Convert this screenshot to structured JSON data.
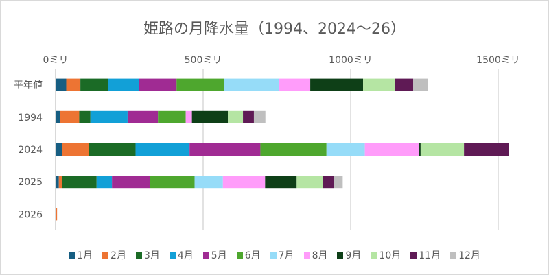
{
  "chart_data": {
    "type": "bar",
    "orientation": "horizontal",
    "stacked": true,
    "title": "姫路の月降水量（1994、2024～26）",
    "categories": [
      "平年値",
      "1994",
      "2024",
      "2025",
      "2026"
    ],
    "x_ticks": [
      "0ミリ",
      "500ミリ",
      "1000ミリ",
      "1500ミリ"
    ],
    "x_tick_values": [
      0,
      500,
      1000,
      1500
    ],
    "xlim": [
      0,
      1500
    ],
    "grid": true,
    "legend_position": "bottom",
    "series": [
      {
        "name": "1月",
        "color": "#175E82",
        "values": [
          36,
          15,
          23,
          11,
          0
        ]
      },
      {
        "name": "2月",
        "color": "#ED7433",
        "values": [
          48,
          65,
          90,
          12,
          5
        ]
      },
      {
        "name": "3月",
        "color": "#1B6B26",
        "values": [
          94,
          38,
          158,
          116,
          0
        ]
      },
      {
        "name": "4月",
        "color": "#12A0D7",
        "values": [
          104,
          126,
          183,
          52,
          0
        ]
      },
      {
        "name": "5月",
        "color": "#A02B93",
        "values": [
          128,
          103,
          240,
          128,
          0
        ]
      },
      {
        "name": "6月",
        "color": "#4EA72E",
        "values": [
          162,
          94,
          224,
          152,
          0
        ]
      },
      {
        "name": "7月",
        "color": "#96DCF8",
        "values": [
          186,
          0,
          130,
          96,
          0
        ]
      },
      {
        "name": "8月",
        "color": "#FF9CFA",
        "values": [
          105,
          21,
          184,
          143,
          0
        ]
      },
      {
        "name": "9月",
        "color": "#0E3F17",
        "values": [
          179,
          122,
          5,
          107,
          0
        ]
      },
      {
        "name": "10月",
        "color": "#B5E5A3",
        "values": [
          109,
          51,
          147,
          89,
          0
        ]
      },
      {
        "name": "11月",
        "color": "#5F1A55",
        "values": [
          61,
          37,
          153,
          36,
          0
        ]
      },
      {
        "name": "12月",
        "color": "#BFBFBF",
        "values": [
          49,
          39,
          0,
          31,
          0
        ]
      }
    ]
  }
}
